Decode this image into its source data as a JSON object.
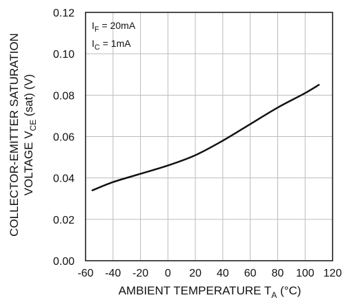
{
  "chart_data": {
    "type": "line",
    "title": "",
    "xlabel": {
      "main": "AMBIENT TEMPERATURE T",
      "sub": "A",
      "unit": " (°C)"
    },
    "ylabel": {
      "line1": "COLLECTOR-EMITTER SATURATION",
      "line2_main": "VOLTAGE V",
      "line2_sub": "CE",
      "line2_rest": " (sat) (V)"
    },
    "x_ticks": [
      "-60",
      "-40",
      "-20",
      "0",
      "20",
      "40",
      "60",
      "80",
      "100",
      "120"
    ],
    "y_ticks": [
      "0.00",
      "0.02",
      "0.04",
      "0.06",
      "0.08",
      "0.10",
      "0.12"
    ],
    "xlim": [
      -60,
      120
    ],
    "ylim": [
      0.0,
      0.12
    ],
    "grid": true,
    "annotations": [
      {
        "main": "I",
        "sub": "F",
        "rest": " = 20mA"
      },
      {
        "main": "I",
        "sub": "C",
        "rest": " = 1mA"
      }
    ],
    "series": [
      {
        "x": [
          -55,
          -40,
          -20,
          0,
          20,
          40,
          60,
          80,
          100,
          110
        ],
        "y": [
          0.034,
          0.038,
          0.042,
          0.046,
          0.051,
          0.058,
          0.066,
          0.074,
          0.081,
          0.085
        ]
      }
    ],
    "colors": {
      "line": "#111111",
      "grid": "#bbbbbb",
      "frame": "#111111",
      "background": "#ffffff"
    }
  }
}
